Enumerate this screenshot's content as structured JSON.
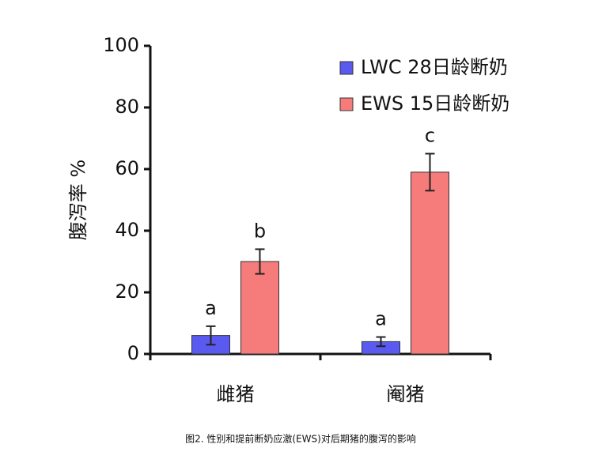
{
  "chart_data": {
    "type": "bar",
    "caption": "图2. 性别和提前断奶应激(EWS)对后期猪的腹泻的影响",
    "y_label": "腹泻率 %",
    "categories": [
      "雌猪",
      "阉猪"
    ],
    "series": [
      {
        "name": "LWC 28日龄断奶",
        "color": "#5a5af0",
        "values": [
          6,
          4
        ],
        "errors": [
          3,
          1.5
        ],
        "labels": [
          "a",
          "a"
        ]
      },
      {
        "name": "EWS 15日龄断奶",
        "color": "#f67c7c",
        "values": [
          30,
          59
        ],
        "errors": [
          4,
          6
        ],
        "labels": [
          "b",
          "c"
        ]
      }
    ],
    "ylim": [
      0,
      100
    ],
    "yticks": [
      0,
      20,
      40,
      60,
      80,
      100
    ],
    "grid": false,
    "legend": "top-right"
  }
}
